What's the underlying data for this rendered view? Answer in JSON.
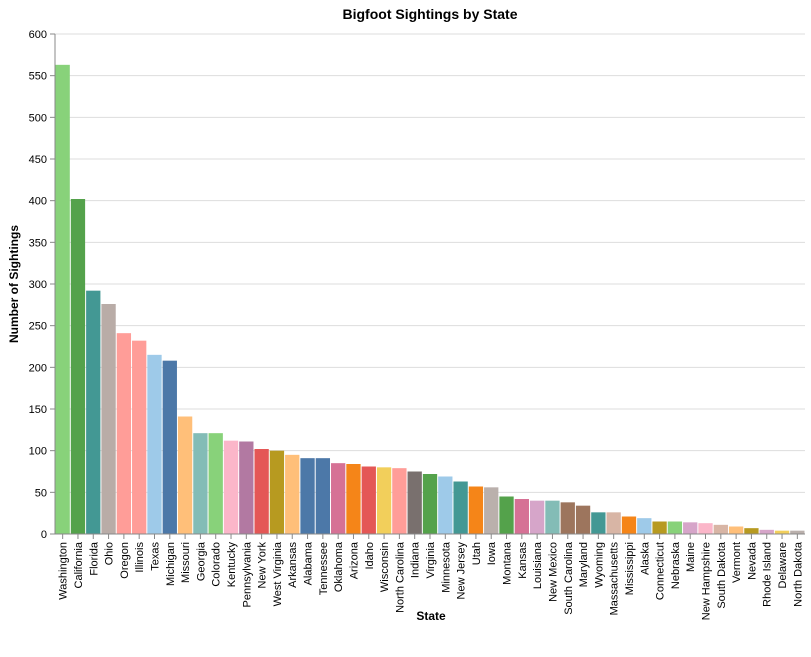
{
  "chart_data": {
    "type": "bar",
    "title": "Bigfoot Sightings by State",
    "xlabel": "State",
    "ylabel": "Number of Sightings",
    "ylim": [
      0,
      600
    ],
    "yticks": [
      0,
      50,
      100,
      150,
      200,
      250,
      300,
      350,
      400,
      450,
      500,
      550,
      600
    ],
    "grid": true,
    "legend": "none",
    "categories": [
      "Washington",
      "California",
      "Florida",
      "Ohio",
      "Oregon",
      "Illinois",
      "Texas",
      "Michigan",
      "Missouri",
      "Georgia",
      "Colorado",
      "Kentucky",
      "Pennsylvania",
      "New York",
      "West Virginia",
      "Arkansas",
      "Alabama",
      "Tennessee",
      "Oklahoma",
      "Arizona",
      "Idaho",
      "Wisconsin",
      "North Carolina",
      "Indiana",
      "Virginia",
      "Minnesota",
      "New Jersey",
      "Utah",
      "Iowa",
      "Montana",
      "Kansas",
      "Louisiana",
      "New Mexico",
      "South Carolina",
      "Maryland",
      "Wyoming",
      "Massachusetts",
      "Mississippi",
      "Alaska",
      "Connecticut",
      "Nebraska",
      "Maine",
      "New Hampshire",
      "South Dakota",
      "Vermont",
      "Nevada",
      "Rhode Island",
      "Delaware",
      "North Dakota"
    ],
    "values": [
      563,
      402,
      292,
      276,
      241,
      232,
      215,
      208,
      141,
      121,
      121,
      112,
      111,
      102,
      100,
      95,
      91,
      91,
      85,
      84,
      81,
      80,
      79,
      75,
      72,
      69,
      63,
      57,
      56,
      45,
      42,
      40,
      40,
      38,
      34,
      26,
      26,
      21,
      19,
      15,
      15,
      14,
      13,
      11,
      9,
      7,
      5,
      4,
      4
    ],
    "colors": [
      "#88d27a",
      "#54a24b",
      "#439894",
      "#b9aca7",
      "#ff9d98",
      "#ff9d98",
      "#9ecae9",
      "#4c78a8",
      "#ffbf79",
      "#83bcb6",
      "#88d27a",
      "#fbb6c9",
      "#b279a2",
      "#e45756",
      "#b79a20",
      "#ffbf79",
      "#4c78a8",
      "#4c78a8",
      "#d67195",
      "#f58518",
      "#e45756",
      "#f2cf5b",
      "#ff9d98",
      "#79706e",
      "#54a24b",
      "#9ecae9",
      "#439894",
      "#f58518",
      "#bab0ac",
      "#54a24b",
      "#d67195",
      "#d6a5c9",
      "#83bcb6",
      "#9d755d",
      "#9d755d",
      "#439894",
      "#d8b5a5",
      "#f58518",
      "#9ecae9",
      "#b79a20",
      "#88d27a",
      "#d6a5c9",
      "#fbb6c9",
      "#d8b5a5",
      "#ffbf79",
      "#b79a20",
      "#d6a5c9",
      "#f2cf5b",
      "#bab0ac"
    ]
  }
}
